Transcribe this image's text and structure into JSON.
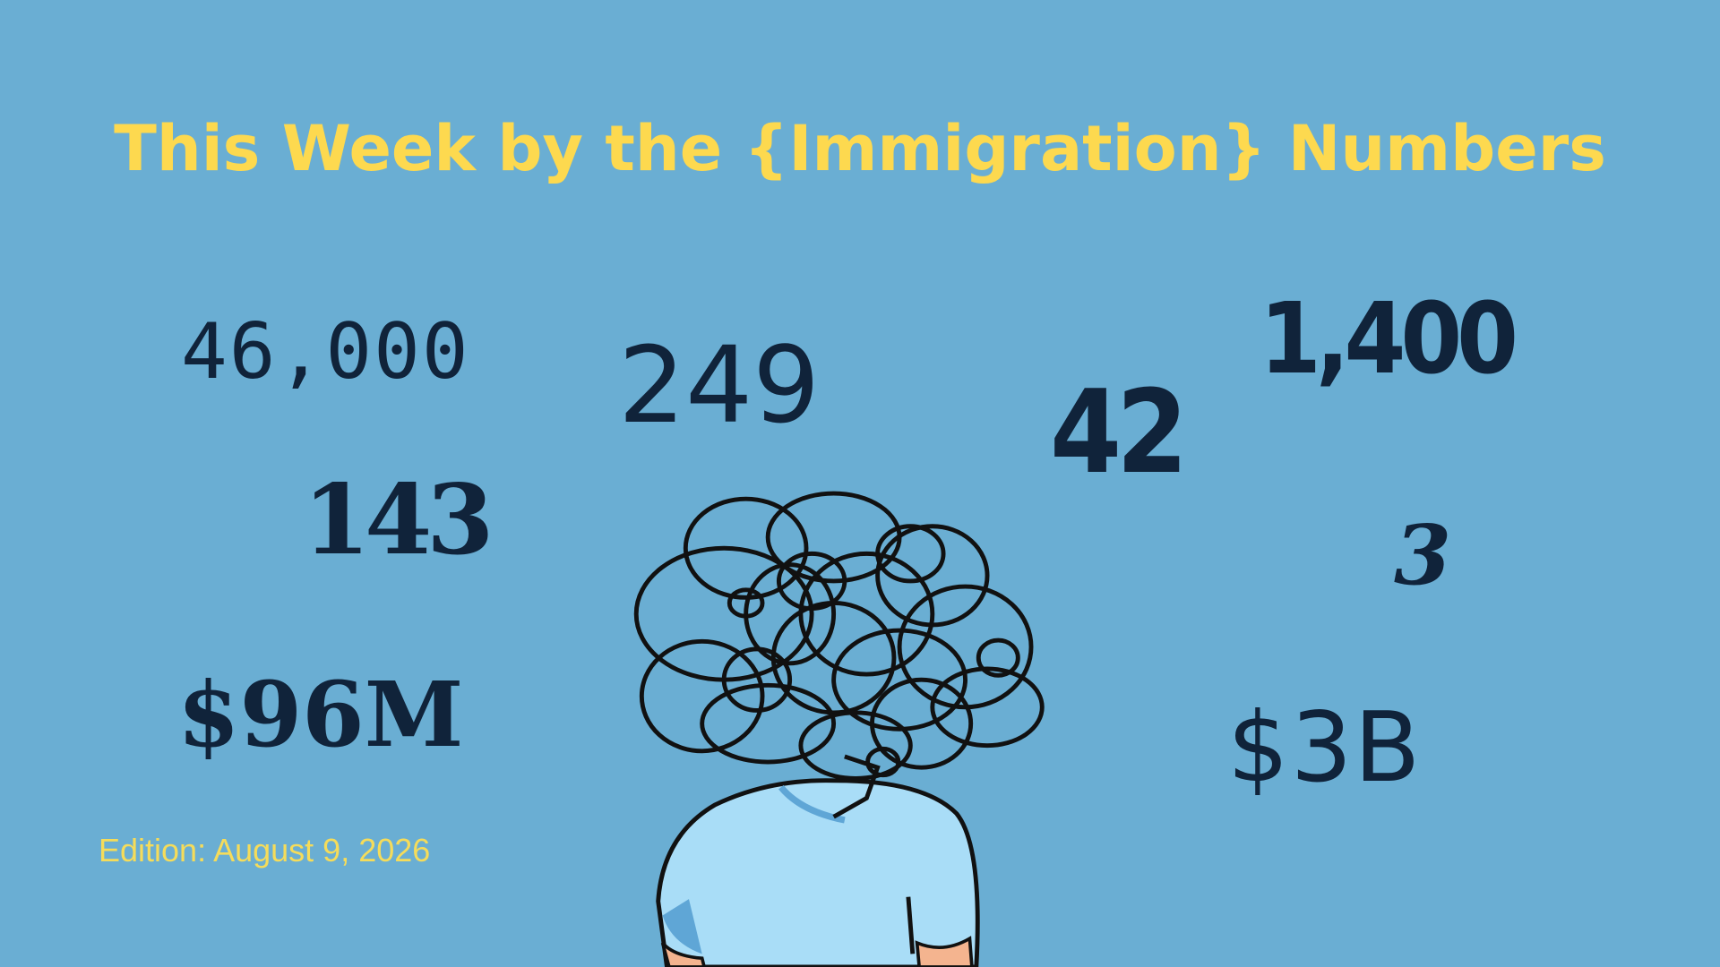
{
  "title": "This Week by the {Immigration} Numbers",
  "numbers": [
    "46,000",
    "249",
    "42",
    "1,400",
    "143",
    "3",
    "$96M",
    "$3B"
  ],
  "edition": "Edition: August 9, 2026"
}
